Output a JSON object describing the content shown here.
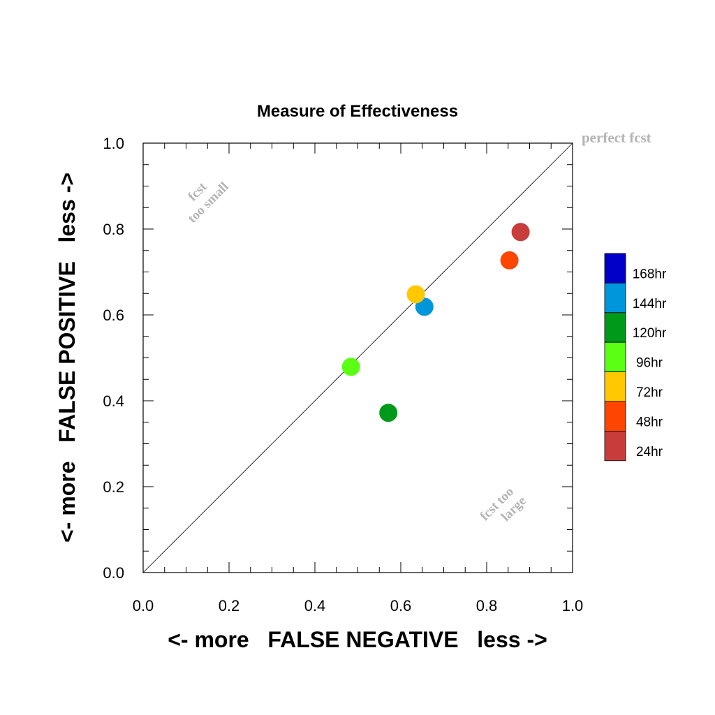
{
  "chart_data": {
    "type": "scatter",
    "title": "Measure of Effectiveness",
    "xlabel": "<- more   FALSE NEGATIVE   less ->",
    "ylabel": "<- more   FALSE POSITIVE   less ->",
    "xlim": [
      0,
      1
    ],
    "ylim": [
      0,
      1
    ],
    "x_ticks": [
      "0.0",
      "0.2",
      "0.4",
      "0.6",
      "0.8",
      "1.0"
    ],
    "y_ticks": [
      "0.0",
      "0.2",
      "0.4",
      "0.6",
      "0.8",
      "1.0"
    ],
    "grid": false,
    "diagonal_line": true,
    "legend_position": "right",
    "annotations": {
      "perfect": "perfect fcst",
      "small_1": "fcst",
      "small_2": "too small",
      "large_1": "fcst too",
      "large_2": "large"
    },
    "series": [
      {
        "name": "168hr",
        "color": "#0000c8",
        "points": []
      },
      {
        "name": "144hr",
        "color": "#0096dc",
        "points": [
          [
            0.655,
            0.619
          ]
        ]
      },
      {
        "name": "120hr",
        "color": "#009a1a",
        "points": [
          [
            0.571,
            0.372
          ]
        ]
      },
      {
        "name": "96hr",
        "color": "#5aff14",
        "points": [
          [
            0.484,
            0.479
          ]
        ]
      },
      {
        "name": "72hr",
        "color": "#ffc800",
        "points": [
          [
            0.635,
            0.648
          ]
        ]
      },
      {
        "name": "48hr",
        "color": "#ff4600",
        "points": [
          [
            0.853,
            0.727
          ]
        ]
      },
      {
        "name": "24hr",
        "color": "#c83c3c",
        "points": [
          [
            0.879,
            0.793
          ]
        ]
      }
    ]
  }
}
